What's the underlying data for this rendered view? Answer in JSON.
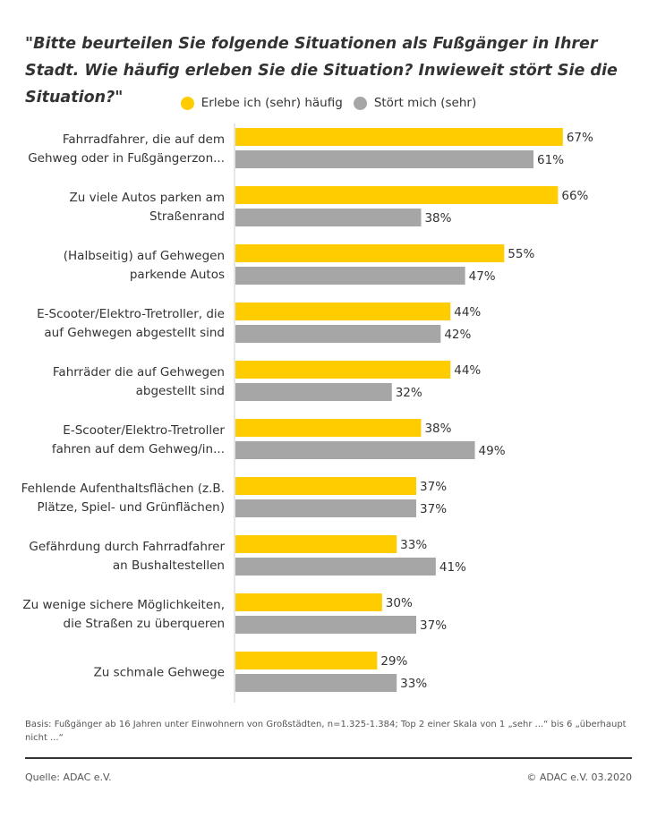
{
  "title": "\"Bitte beurteilen Sie folgende Situationen als Fußgänger in Ihrer Stadt. Wie häufig erleben Sie die Situation? Inwieweit stört Sie die Situation?\"",
  "legend": [
    {
      "label": "Erlebe ich (sehr) häufig",
      "color": "#FFCC00"
    },
    {
      "label": "Stört mich (sehr)",
      "color": "#A6A6A6"
    }
  ],
  "chart_data": {
    "type": "bar",
    "orientation": "horizontal",
    "categories": [
      [
        "Fahrradfahrer, die auf dem",
        "Gehweg oder in Fußgängerzon..."
      ],
      [
        "Zu viele Autos parken am",
        "Straßenrand"
      ],
      [
        "(Halbseitig) auf Gehwegen",
        "parkende Autos"
      ],
      [
        "E-Scooter/Elektro-Tretroller, die",
        "auf Gehwegen abgestellt sind"
      ],
      [
        "Fahrräder die auf Gehwegen",
        "abgestellt sind"
      ],
      [
        "E-Scooter/Elektro-Tretroller",
        "fahren auf dem Gehweg/in..."
      ],
      [
        "Fehlende Aufenthaltsflächen (z.B.",
        "Plätze, Spiel- und Grünflächen)"
      ],
      [
        "Gefährdung durch Fahrradfahrer",
        "an Bushaltestellen"
      ],
      [
        "Zu wenige sichere Möglichkeiten,",
        "die Straßen zu überqueren"
      ],
      [
        "Zu schmale Gehwege"
      ]
    ],
    "series": [
      {
        "name": "Erlebe ich (sehr) häufig",
        "color": "#FFCC00",
        "values": [
          67,
          66,
          55,
          44,
          44,
          38,
          37,
          33,
          30,
          29
        ]
      },
      {
        "name": "Stört mich (sehr)",
        "color": "#A6A6A6",
        "values": [
          61,
          38,
          47,
          42,
          32,
          49,
          37,
          41,
          37,
          33
        ]
      }
    ],
    "value_suffix": "%",
    "xlim": [
      0,
      100
    ]
  },
  "footnote": "Basis: Fußgänger ab 16 Jahren unter Einwohnern von Großstädten, n=1.325-1.384; Top 2 einer Skala von 1 „sehr ...“ bis 6 „überhaupt nicht ...“",
  "source": "Quelle: ADAC e.V.",
  "copyright": "© ADAC e.V. 03.2020"
}
